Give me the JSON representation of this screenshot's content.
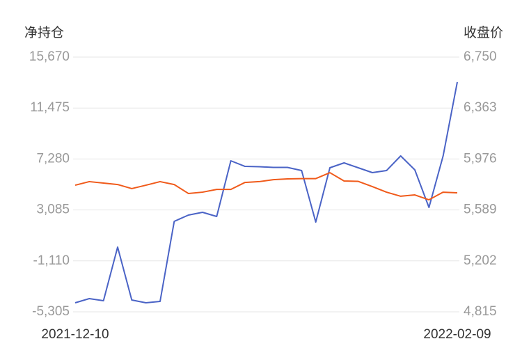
{
  "chart_data": {
    "type": "line",
    "y_title": "净持仓",
    "y2_title": "收盘价",
    "categories": [
      "2021-12-10",
      null,
      null,
      null,
      null,
      null,
      null,
      null,
      null,
      null,
      null,
      null,
      null,
      null,
      null,
      null,
      null,
      null,
      null,
      null,
      null,
      null,
      null,
      null,
      null,
      null,
      null,
      "2022-02-09"
    ],
    "ylim": [
      -5305,
      15670
    ],
    "yticks": [
      {
        "value": -5305,
        "label": "-5,305"
      },
      {
        "value": -1110,
        "label": "-1,110"
      },
      {
        "value": 3085,
        "label": "3,085"
      },
      {
        "value": 7280,
        "label": "7,280"
      },
      {
        "value": 11475,
        "label": "11,475"
      },
      {
        "value": 15670,
        "label": "15,670"
      }
    ],
    "y2lim": [
      4815,
      6750
    ],
    "y2ticks": [
      {
        "value": 4815,
        "label": "4,815"
      },
      {
        "value": 5202,
        "label": "5,202"
      },
      {
        "value": 5589,
        "label": "5,589"
      },
      {
        "value": 5976,
        "label": "5,976"
      },
      {
        "value": 6363,
        "label": "6,363"
      },
      {
        "value": 6750,
        "label": "6,750"
      }
    ],
    "grid": true,
    "series": [
      {
        "name": "净持仓",
        "color": "#4a63c6",
        "axis": "y",
        "values": [
          -4560,
          -4216,
          -4388,
          24,
          -4330,
          -4560,
          -4445,
          2145,
          2660,
          2890,
          2546,
          7131,
          6672,
          6644,
          6586,
          6586,
          6328,
          2088,
          6558,
          6959,
          6558,
          6157,
          6328,
          7532,
          6386,
          3291,
          7532,
          13607
        ]
      },
      {
        "name": "收盘价",
        "color": "#f05a1a",
        "axis": "y2",
        "values": [
          5777,
          5804,
          5793,
          5782,
          5751,
          5777,
          5804,
          5782,
          5714,
          5724,
          5745,
          5745,
          5798,
          5804,
          5819,
          5825,
          5827,
          5827,
          5872,
          5809,
          5806,
          5766,
          5724,
          5693,
          5703,
          5666,
          5724,
          5719
        ]
      }
    ]
  }
}
